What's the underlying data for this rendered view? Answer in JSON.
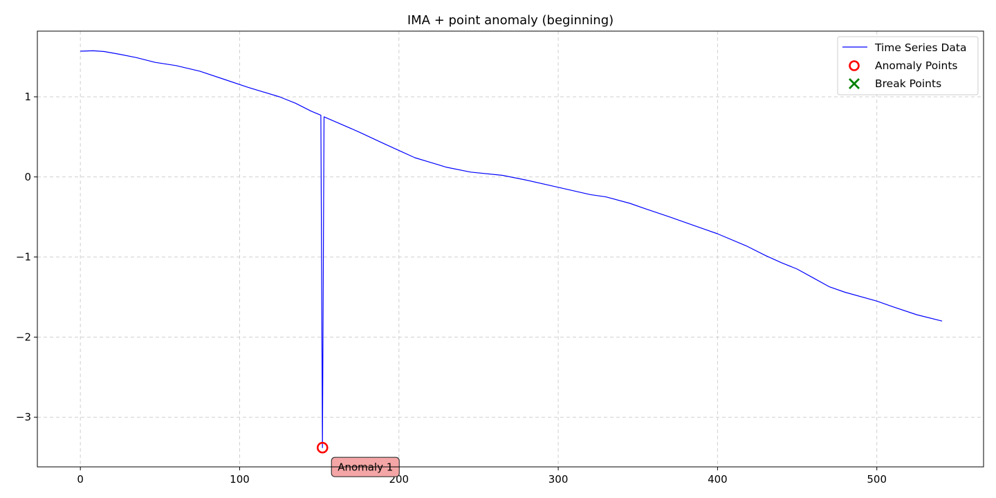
{
  "chart_data": {
    "type": "line",
    "title": "IMA + point anomaly (beginning)",
    "xlabel": "",
    "ylabel": "",
    "xlim": [
      -27,
      567
    ],
    "ylim": [
      -3.62,
      1.82
    ],
    "grid": true,
    "x_ticks": [
      0,
      100,
      200,
      300,
      400,
      500
    ],
    "y_ticks": [
      1,
      0,
      -1,
      -2,
      -3
    ],
    "x_tick_labels": [
      "0",
      "100",
      "200",
      "300",
      "400",
      "500"
    ],
    "y_tick_labels": [
      "1",
      "0",
      "−1",
      "−2",
      "−3"
    ],
    "series": [
      {
        "name": "Time Series Data",
        "color": "#0000ff",
        "points": [
          [
            0,
            1.57
          ],
          [
            8,
            1.575
          ],
          [
            15,
            1.565
          ],
          [
            25,
            1.53
          ],
          [
            35,
            1.49
          ],
          [
            47,
            1.43
          ],
          [
            60,
            1.39
          ],
          [
            75,
            1.32
          ],
          [
            90,
            1.22
          ],
          [
            105,
            1.12
          ],
          [
            125,
            1.0
          ],
          [
            135,
            0.92
          ],
          [
            145,
            0.82
          ],
          [
            151,
            0.77
          ],
          [
            152,
            -3.38
          ],
          [
            153,
            0.75
          ],
          [
            160,
            0.69
          ],
          [
            175,
            0.56
          ],
          [
            190,
            0.42
          ],
          [
            200,
            0.33
          ],
          [
            210,
            0.24
          ],
          [
            220,
            0.18
          ],
          [
            230,
            0.12
          ],
          [
            245,
            0.06
          ],
          [
            265,
            0.02
          ],
          [
            280,
            -0.04
          ],
          [
            300,
            -0.13
          ],
          [
            320,
            -0.22
          ],
          [
            330,
            -0.25
          ],
          [
            345,
            -0.33
          ],
          [
            355,
            -0.4
          ],
          [
            370,
            -0.5
          ],
          [
            380,
            -0.57
          ],
          [
            400,
            -0.71
          ],
          [
            418,
            -0.86
          ],
          [
            430,
            -0.98
          ],
          [
            440,
            -1.07
          ],
          [
            450,
            -1.15
          ],
          [
            460,
            -1.26
          ],
          [
            470,
            -1.37
          ],
          [
            480,
            -1.44
          ],
          [
            500,
            -1.55
          ],
          [
            510,
            -1.62
          ],
          [
            525,
            -1.72
          ],
          [
            541,
            -1.8
          ]
        ]
      }
    ],
    "anomalies": [
      {
        "x": 152,
        "y": -3.38,
        "label": "Anomaly 1",
        "color": "#ff0000"
      }
    ],
    "break_points": [],
    "legend": {
      "position": "top-right",
      "entries": [
        {
          "label": "Time Series Data",
          "marker": "line",
          "color": "#0000ff"
        },
        {
          "label": "Anomaly Points",
          "marker": "circle",
          "color": "#ff0000"
        },
        {
          "label": "Break Points",
          "marker": "x",
          "color": "#008000"
        }
      ]
    }
  }
}
